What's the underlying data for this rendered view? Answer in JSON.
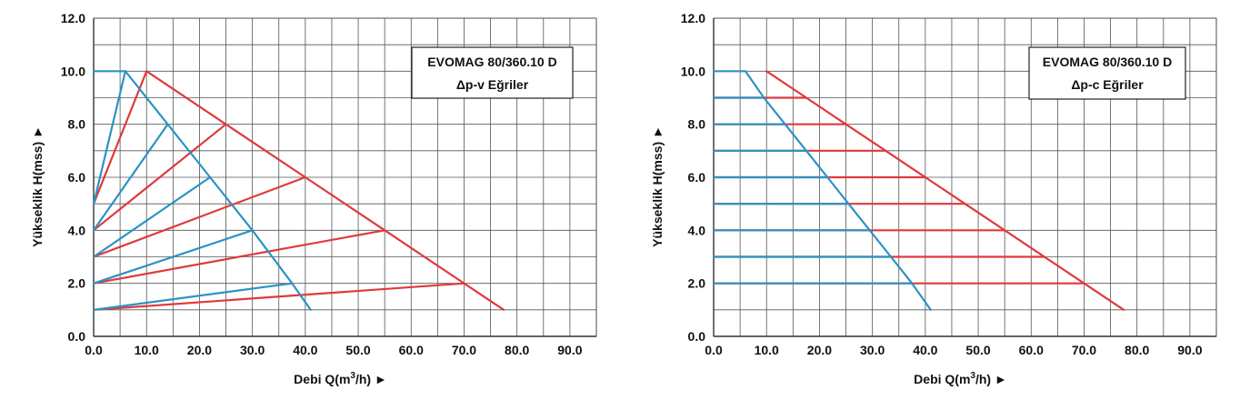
{
  "chart_data": [
    {
      "type": "line",
      "legend_title": "EVOMAG 80/360.10 D",
      "legend_subtitle": "Δp-v Eğriler",
      "legend_position": "top-right",
      "ylabel": "Yükseklik H(mss) ►",
      "xlabel_main": "Debi Q(m",
      "xlabel_sup": "3",
      "xlabel_tail": "/h) ►",
      "xlim": [
        0,
        95
      ],
      "ylim": [
        0,
        12
      ],
      "grid": true,
      "x_ticks": [
        "0.0",
        "10.0",
        "20.0",
        "30.0",
        "40.0",
        "50.0",
        "60.0",
        "70.0",
        "80.0",
        "90.0"
      ],
      "y_ticks": [
        "0.0",
        "",
        "2.0",
        "",
        "4.0",
        "",
        "6.0",
        "",
        "8.0",
        "",
        "10.0",
        "",
        "12.0"
      ],
      "colors": {
        "red": "#e0393c",
        "blue": "#2b93c3"
      },
      "series": [
        {
          "color": "red",
          "points": [
            [
              0,
              5
            ],
            [
              10,
              10
            ]
          ]
        },
        {
          "color": "red",
          "points": [
            [
              0,
              4
            ],
            [
              25,
              8
            ]
          ]
        },
        {
          "color": "red",
          "points": [
            [
              0,
              3
            ],
            [
              40,
              6
            ]
          ]
        },
        {
          "color": "red",
          "points": [
            [
              0,
              2
            ],
            [
              55,
              4
            ]
          ]
        },
        {
          "color": "red",
          "points": [
            [
              0,
              1
            ],
            [
              70,
              2
            ]
          ]
        },
        {
          "color": "red",
          "points": [
            [
              10,
              10
            ],
            [
              25,
              8
            ],
            [
              40,
              6
            ],
            [
              55,
              4
            ],
            [
              70,
              2
            ],
            [
              77.5,
              1
            ]
          ]
        },
        {
          "color": "blue",
          "points": [
            [
              0,
              5
            ],
            [
              6,
              10
            ]
          ]
        },
        {
          "color": "blue",
          "points": [
            [
              0,
              4
            ],
            [
              14,
              8
            ]
          ]
        },
        {
          "color": "blue",
          "points": [
            [
              0,
              3
            ],
            [
              22,
              6
            ]
          ]
        },
        {
          "color": "blue",
          "points": [
            [
              0,
              2
            ],
            [
              30,
              4
            ]
          ]
        },
        {
          "color": "blue",
          "points": [
            [
              0,
              1
            ],
            [
              37.5,
              2
            ]
          ]
        },
        {
          "color": "blue",
          "points": [
            [
              0,
              10
            ],
            [
              6,
              10
            ],
            [
              14,
              8
            ],
            [
              22,
              6
            ],
            [
              30,
              4
            ],
            [
              37.5,
              2
            ],
            [
              41,
              1
            ]
          ]
        }
      ]
    },
    {
      "type": "line",
      "legend_title": "EVOMAG 80/360.10 D",
      "legend_subtitle": "Δp-c Eğriler",
      "legend_position": "top-right",
      "ylabel": "Yükseklik H(mss) ►",
      "xlabel_main": "Debi Q(m",
      "xlabel_sup": "3",
      "xlabel_tail": "/h) ►",
      "xlim": [
        0,
        95
      ],
      "ylim": [
        0,
        12
      ],
      "grid": true,
      "x_ticks": [
        "0.0",
        "10.0",
        "20.0",
        "30.0",
        "40.0",
        "50.0",
        "60.0",
        "70.0",
        "80.0",
        "90.0"
      ],
      "y_ticks": [
        "0.0",
        "",
        "2.0",
        "",
        "4.0",
        "",
        "6.0",
        "",
        "8.0",
        "",
        "10.0",
        "",
        "12.0"
      ],
      "colors": {
        "red": "#e0393c",
        "blue": "#2b93c3"
      },
      "series": [
        {
          "color": "red",
          "points": [
            [
              10,
              10
            ],
            [
              17.5,
              9
            ],
            [
              25,
              8
            ],
            [
              32.5,
              7
            ],
            [
              40,
              6
            ],
            [
              47.5,
              5
            ],
            [
              55,
              4
            ],
            [
              62.5,
              3
            ],
            [
              70,
              2
            ],
            [
              77.5,
              1
            ]
          ]
        },
        {
          "color": "red",
          "points": [
            [
              0,
              9
            ],
            [
              17.5,
              9
            ]
          ]
        },
        {
          "color": "red",
          "points": [
            [
              0,
              8
            ],
            [
              25,
              8
            ]
          ]
        },
        {
          "color": "red",
          "points": [
            [
              0,
              7
            ],
            [
              32.5,
              7
            ]
          ]
        },
        {
          "color": "red",
          "points": [
            [
              0,
              6
            ],
            [
              40,
              6
            ]
          ]
        },
        {
          "color": "red",
          "points": [
            [
              0,
              5
            ],
            [
              47.5,
              5
            ]
          ]
        },
        {
          "color": "red",
          "points": [
            [
              0,
              4
            ],
            [
              55,
              4
            ]
          ]
        },
        {
          "color": "red",
          "points": [
            [
              0,
              3
            ],
            [
              62.5,
              3
            ]
          ]
        },
        {
          "color": "red",
          "points": [
            [
              0,
              2
            ],
            [
              70,
              2
            ]
          ]
        },
        {
          "color": "blue",
          "points": [
            [
              0,
              9
            ],
            [
              9.5,
              9
            ]
          ]
        },
        {
          "color": "blue",
          "points": [
            [
              0,
              8
            ],
            [
              13.5,
              8
            ]
          ]
        },
        {
          "color": "blue",
          "points": [
            [
              0,
              7
            ],
            [
              17.5,
              7
            ]
          ]
        },
        {
          "color": "blue",
          "points": [
            [
              0,
              6
            ],
            [
              21.5,
              6
            ]
          ]
        },
        {
          "color": "blue",
          "points": [
            [
              0,
              5
            ],
            [
              25.5,
              5
            ]
          ]
        },
        {
          "color": "blue",
          "points": [
            [
              0,
              4
            ],
            [
              29.5,
              4
            ]
          ]
        },
        {
          "color": "blue",
          "points": [
            [
              0,
              3
            ],
            [
              33.5,
              3
            ]
          ]
        },
        {
          "color": "blue",
          "points": [
            [
              0,
              2
            ],
            [
              37.5,
              2
            ]
          ]
        },
        {
          "color": "blue",
          "points": [
            [
              0,
              10
            ],
            [
              6,
              10
            ],
            [
              9.5,
              9
            ],
            [
              13.5,
              8
            ],
            [
              17.5,
              7
            ],
            [
              21.5,
              6
            ],
            [
              25.5,
              5
            ],
            [
              29.5,
              4
            ],
            [
              33.5,
              3
            ],
            [
              37.5,
              2
            ],
            [
              41,
              1
            ]
          ]
        }
      ]
    }
  ]
}
